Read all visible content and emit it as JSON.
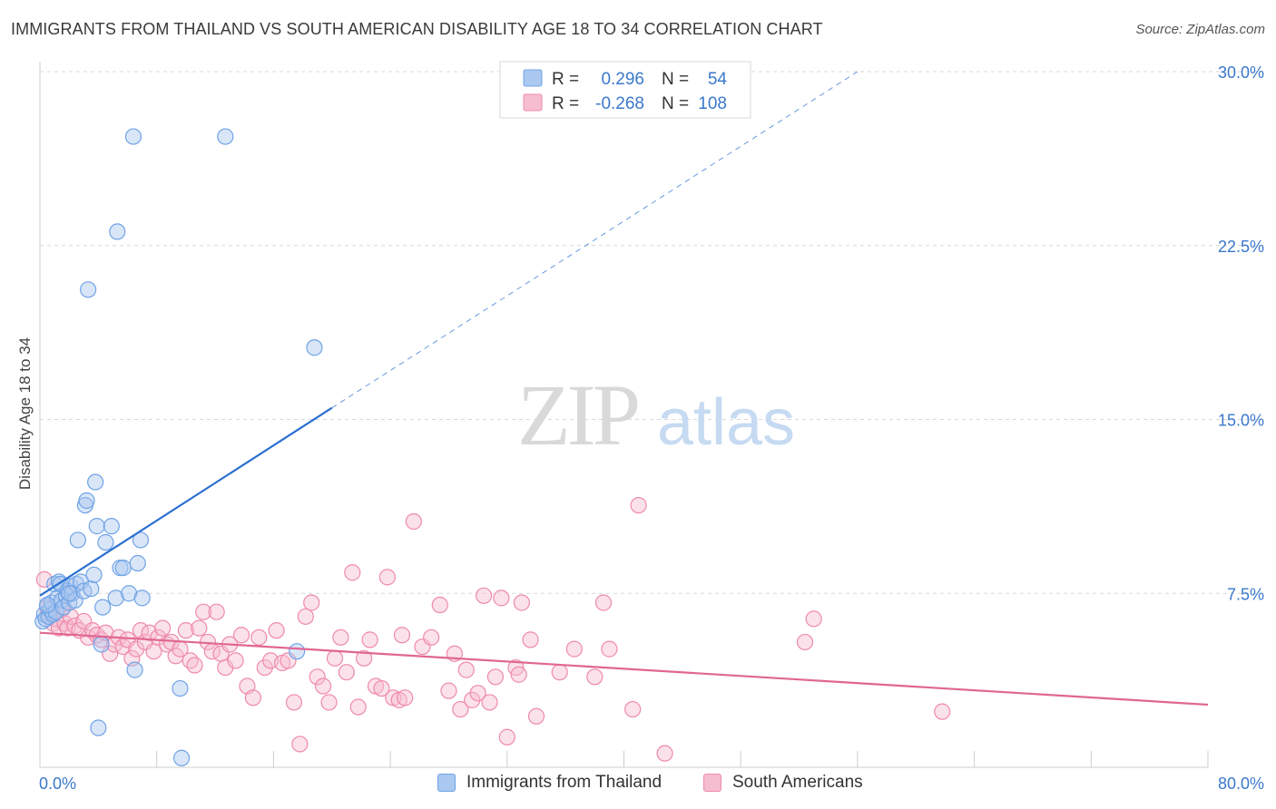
{
  "title": "IMMIGRANTS FROM THAILAND VS SOUTH AMERICAN DISABILITY AGE 18 TO 34 CORRELATION CHART",
  "source": "Source: ZipAtlas.com",
  "watermark": {
    "zip": "ZIP",
    "atlas": "atlas"
  },
  "colors": {
    "blue": "#6fa3e6",
    "blue_fill": "#aac8f0",
    "blue_line": "#2a6fd1",
    "pink": "#ee8aac",
    "pink_fill": "#f6bdd0",
    "pink_line": "#e06694",
    "text_blue": "#3a78cc",
    "grid": "#d8d8d8"
  },
  "stats_legend": [
    {
      "r_label": "R =",
      "r_value": "0.296",
      "n_label": "N =",
      "n_value": "54"
    },
    {
      "r_label": "R =",
      "r_value": "-0.268",
      "n_label": "N =",
      "n_value": "108"
    }
  ],
  "bottom_legend": [
    "Immigrants from Thailand",
    "South Americans"
  ],
  "chart_data": {
    "type": "scatter",
    "title": "IMMIGRANTS FROM THAILAND VS SOUTH AMERICAN DISABILITY AGE 18 TO 34 CORRELATION CHART",
    "xlabel": "",
    "ylabel": "Disability Age 18 to 34",
    "xlim": [
      0,
      80
    ],
    "ylim": [
      0,
      30
    ],
    "x_tick_labels": [
      "0.0%",
      "80.0%"
    ],
    "y_ticks": [
      7.5,
      15.0,
      22.5,
      30.0
    ],
    "y_tick_labels": [
      "7.5%",
      "15.0%",
      "22.5%",
      "30.0%"
    ],
    "grid": true,
    "legend_position": "bottom",
    "series": [
      {
        "name": "Immigrants from Thailand",
        "r": 0.296,
        "n": 54,
        "trend": {
          "x0": 0,
          "y0": 7.4,
          "x1": 20,
          "y1": 15.5,
          "dashed_to_x": 56,
          "dashed_to_y": 30.0
        },
        "points": [
          [
            0.2,
            6.3
          ],
          [
            0.3,
            6.6
          ],
          [
            0.4,
            6.4
          ],
          [
            0.5,
            7.0
          ],
          [
            0.6,
            6.5
          ],
          [
            0.7,
            6.8
          ],
          [
            0.8,
            7.1
          ],
          [
            0.9,
            6.6
          ],
          [
            1.0,
            7.9
          ],
          [
            1.1,
            6.7
          ],
          [
            1.2,
            7.3
          ],
          [
            1.3,
            8.0
          ],
          [
            1.4,
            7.9
          ],
          [
            1.5,
            7.2
          ],
          [
            1.6,
            6.9
          ],
          [
            1.8,
            7.4
          ],
          [
            1.9,
            7.6
          ],
          [
            2.0,
            7.1
          ],
          [
            2.1,
            7.8
          ],
          [
            2.2,
            7.5
          ],
          [
            2.4,
            7.2
          ],
          [
            2.5,
            7.9
          ],
          [
            2.6,
            9.8
          ],
          [
            2.8,
            8.0
          ],
          [
            3.0,
            7.6
          ],
          [
            3.1,
            11.3
          ],
          [
            3.2,
            11.5
          ],
          [
            3.3,
            20.6
          ],
          [
            3.5,
            7.7
          ],
          [
            3.7,
            8.3
          ],
          [
            3.8,
            12.3
          ],
          [
            3.9,
            10.4
          ],
          [
            4.0,
            1.7
          ],
          [
            4.2,
            5.3
          ],
          [
            4.3,
            6.9
          ],
          [
            4.5,
            9.7
          ],
          [
            4.9,
            10.4
          ],
          [
            5.2,
            7.3
          ],
          [
            5.3,
            23.1
          ],
          [
            5.5,
            8.6
          ],
          [
            5.7,
            8.6
          ],
          [
            6.1,
            7.5
          ],
          [
            6.4,
            27.2
          ],
          [
            6.5,
            4.2
          ],
          [
            6.7,
            8.8
          ],
          [
            6.9,
            9.8
          ],
          [
            7.0,
            7.3
          ],
          [
            9.6,
            3.4
          ],
          [
            9.7,
            0.4
          ],
          [
            12.7,
            27.2
          ],
          [
            17.6,
            5.0
          ],
          [
            18.8,
            18.1
          ],
          [
            0.5,
            7.0
          ],
          [
            2.0,
            7.5
          ]
        ]
      },
      {
        "name": "South Americans",
        "r": -0.268,
        "n": 108,
        "trend": {
          "x0": 0,
          "y0": 5.8,
          "x1": 80,
          "y1": 2.7
        },
        "points": [
          [
            0.3,
            8.1
          ],
          [
            0.5,
            6.9
          ],
          [
            0.7,
            6.6
          ],
          [
            0.9,
            6.2
          ],
          [
            1.1,
            6.4
          ],
          [
            1.3,
            6.0
          ],
          [
            1.5,
            6.8
          ],
          [
            1.7,
            6.2
          ],
          [
            1.9,
            6.0
          ],
          [
            2.1,
            6.5
          ],
          [
            2.4,
            6.1
          ],
          [
            2.7,
            5.9
          ],
          [
            3.0,
            6.3
          ],
          [
            3.3,
            5.6
          ],
          [
            3.6,
            5.9
          ],
          [
            3.9,
            5.7
          ],
          [
            4.2,
            5.5
          ],
          [
            4.5,
            5.8
          ],
          [
            4.8,
            4.9
          ],
          [
            5.1,
            5.3
          ],
          [
            5.4,
            5.6
          ],
          [
            5.7,
            5.2
          ],
          [
            6.0,
            5.5
          ],
          [
            6.3,
            4.7
          ],
          [
            6.6,
            5.1
          ],
          [
            6.9,
            5.9
          ],
          [
            7.2,
            5.4
          ],
          [
            7.5,
            5.8
          ],
          [
            7.8,
            5.0
          ],
          [
            8.1,
            5.6
          ],
          [
            8.4,
            6.0
          ],
          [
            8.7,
            5.3
          ],
          [
            9.0,
            5.4
          ],
          [
            9.3,
            4.8
          ],
          [
            9.6,
            5.1
          ],
          [
            10.0,
            5.9
          ],
          [
            10.3,
            4.6
          ],
          [
            10.6,
            4.4
          ],
          [
            10.9,
            6.0
          ],
          [
            11.2,
            6.7
          ],
          [
            11.5,
            5.4
          ],
          [
            11.8,
            5.0
          ],
          [
            12.1,
            6.7
          ],
          [
            12.4,
            4.9
          ],
          [
            12.7,
            4.3
          ],
          [
            13.0,
            5.3
          ],
          [
            13.4,
            4.6
          ],
          [
            13.8,
            5.7
          ],
          [
            14.2,
            3.5
          ],
          [
            14.6,
            3.0
          ],
          [
            15.0,
            5.6
          ],
          [
            15.4,
            4.3
          ],
          [
            15.8,
            4.6
          ],
          [
            16.2,
            5.9
          ],
          [
            16.6,
            4.5
          ],
          [
            17.0,
            4.6
          ],
          [
            17.4,
            2.8
          ],
          [
            17.8,
            1.0
          ],
          [
            18.2,
            6.5
          ],
          [
            18.6,
            7.1
          ],
          [
            19.0,
            3.9
          ],
          [
            19.4,
            3.5
          ],
          [
            19.8,
            2.8
          ],
          [
            20.2,
            4.7
          ],
          [
            20.6,
            5.6
          ],
          [
            21.0,
            4.1
          ],
          [
            21.4,
            8.4
          ],
          [
            21.8,
            2.6
          ],
          [
            22.2,
            4.7
          ],
          [
            22.6,
            5.5
          ],
          [
            23.0,
            3.5
          ],
          [
            23.4,
            3.4
          ],
          [
            23.8,
            8.2
          ],
          [
            24.2,
            3.0
          ],
          [
            24.6,
            2.9
          ],
          [
            24.8,
            5.7
          ],
          [
            25.0,
            3.0
          ],
          [
            25.6,
            10.6
          ],
          [
            26.2,
            5.2
          ],
          [
            26.8,
            5.6
          ],
          [
            27.4,
            7.0
          ],
          [
            28.0,
            3.3
          ],
          [
            28.4,
            4.9
          ],
          [
            28.8,
            2.5
          ],
          [
            29.2,
            4.2
          ],
          [
            29.6,
            2.9
          ],
          [
            30.0,
            3.2
          ],
          [
            30.4,
            7.4
          ],
          [
            30.8,
            2.8
          ],
          [
            31.2,
            3.9
          ],
          [
            31.6,
            7.3
          ],
          [
            32.0,
            1.3
          ],
          [
            32.6,
            4.3
          ],
          [
            32.8,
            4.0
          ],
          [
            33.0,
            7.1
          ],
          [
            33.6,
            5.5
          ],
          [
            34.0,
            2.2
          ],
          [
            35.6,
            4.1
          ],
          [
            36.6,
            5.1
          ],
          [
            38.0,
            3.9
          ],
          [
            38.6,
            7.1
          ],
          [
            39.0,
            5.1
          ],
          [
            40.6,
            2.5
          ],
          [
            41.0,
            11.3
          ],
          [
            42.8,
            0.6
          ],
          [
            52.4,
            5.4
          ],
          [
            53.0,
            6.4
          ],
          [
            61.8,
            2.4
          ]
        ]
      }
    ]
  }
}
